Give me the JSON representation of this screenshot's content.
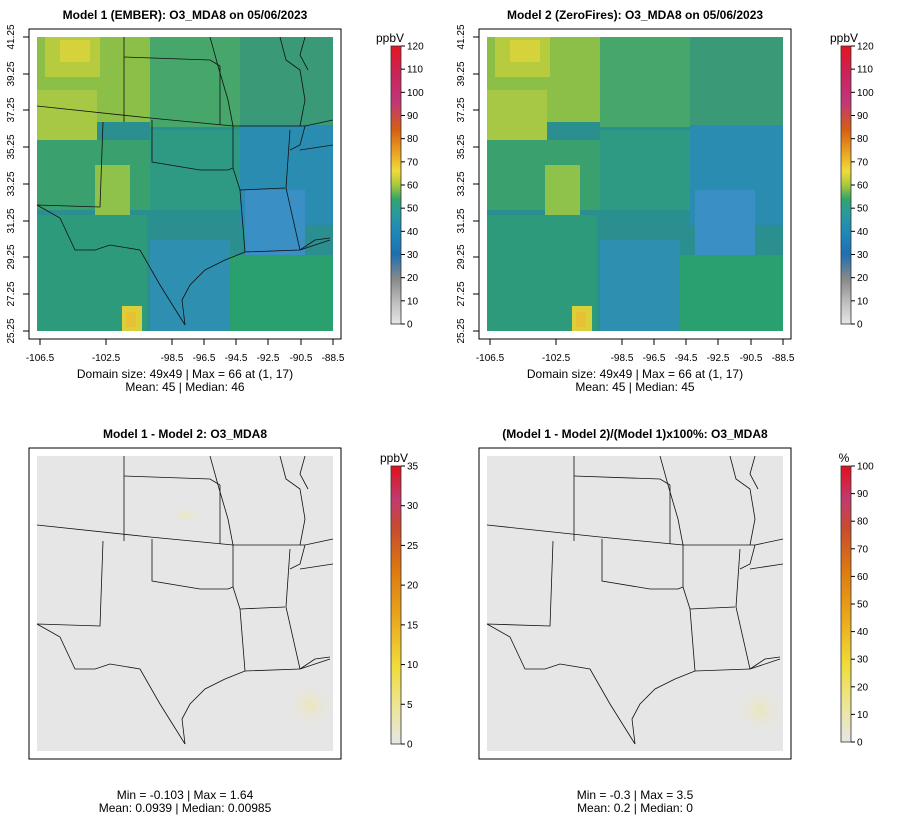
{
  "figure": "CMAQ-style O3 MDA8 model comparison",
  "chart_data": [
    {
      "type": "heatmap",
      "title": "Model 1 (EMBER): O3_MDA8 on 05/06/2023",
      "variable": "O3_MDA8",
      "units": "ppbV",
      "grid": "49x49",
      "colorbar_ticks": [
        "0",
        "10",
        "20",
        "30",
        "40",
        "50",
        "60",
        "70",
        "80",
        "90",
        "100",
        "110",
        "120"
      ],
      "colorbar_range": [
        0,
        120
      ],
      "x_ticks": [
        "-106.5",
        "-102.5",
        "-98.5",
        "-96.5",
        "-94.5",
        "-92.5",
        "-90.5",
        "-88.5"
      ],
      "y_ticks": [
        "25.25",
        "27.25",
        "29.25",
        "31.25",
        "33.25",
        "35.25",
        "37.25",
        "39.25",
        "41.25"
      ],
      "stats_line1": "Domain size: 49x49 | Max = 66 at (1, 17)",
      "stats_line2": "Mean: 45 |  Median: 46",
      "max": 66,
      "mean": 45,
      "median": 46
    },
    {
      "type": "heatmap",
      "title": "Model 2 (ZeroFires): O3_MDA8 on 05/06/2023",
      "variable": "O3_MDA8",
      "units": "ppbV",
      "grid": "49x49",
      "colorbar_ticks": [
        "0",
        "10",
        "20",
        "30",
        "40",
        "50",
        "60",
        "70",
        "80",
        "90",
        "100",
        "110",
        "120"
      ],
      "colorbar_range": [
        0,
        120
      ],
      "x_ticks": [
        "-106.5",
        "-102.5",
        "-98.5",
        "-96.5",
        "-94.5",
        "-92.5",
        "-90.5",
        "-88.5"
      ],
      "y_ticks": [
        "25.25",
        "27.25",
        "29.25",
        "31.25",
        "33.25",
        "35.25",
        "37.25",
        "39.25",
        "41.25"
      ],
      "stats_line1": "Domain size: 49x49 | Max = 66 at (1, 17)",
      "stats_line2": "Mean: 45 |  Median: 45",
      "max": 66,
      "mean": 45,
      "median": 45
    },
    {
      "type": "heatmap",
      "title": "Model 1 - Model 2: O3_MDA8",
      "units": "ppbV",
      "colorbar_ticks": [
        "0",
        "5",
        "10",
        "15",
        "20",
        "25",
        "30",
        "35"
      ],
      "colorbar_range": [
        0,
        35
      ],
      "stats_line1": "Min = -0.103 | Max = 1.64",
      "stats_line2": "Mean: 0.0939 |  Median: 0.00985",
      "min": -0.103,
      "max": 1.64,
      "mean": 0.0939,
      "median": 0.00985
    },
    {
      "type": "heatmap",
      "title": "(Model 1 - Model 2)/(Model 1)x100%: O3_MDA8",
      "units": "%",
      "colorbar_ticks": [
        "0",
        "10",
        "20",
        "30",
        "40",
        "50",
        "60",
        "70",
        "80",
        "90",
        "100"
      ],
      "colorbar_range": [
        0,
        100
      ],
      "stats_line1": "Min = -0.3 | Max = 3.5",
      "stats_line2": "Mean: 0.2 |  Median: 0",
      "min": -0.3,
      "max": 3.5,
      "mean": 0.2,
      "median": 0
    }
  ],
  "colors": {
    "background": "#ffffff",
    "axis": "#000000",
    "diff_fill": "#e6e6e6",
    "scale_main": [
      "#e6e6e6",
      "#8a8a8a",
      "#1f6fb0",
      "#2a9cad",
      "#33a56a",
      "#a8c83c",
      "#f0dc3a",
      "#e9a021",
      "#d55e13",
      "#c2357a",
      "#c9245a",
      "#e5141f"
    ],
    "scale_diff": [
      "#e6e6e6",
      "#ece6a0",
      "#f0dc3a",
      "#eaa81c",
      "#dd7a10",
      "#cc4c1a",
      "#c23a70",
      "#e0101a"
    ]
  }
}
